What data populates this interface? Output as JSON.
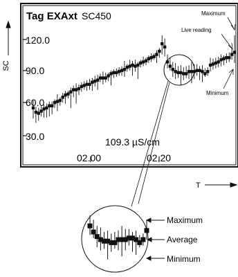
{
  "display": {
    "tag": "Tag EXAxt",
    "model": "SC450",
    "reading": "109.3 µS/cm",
    "y_axis_label": "SC",
    "x_axis_label": "T",
    "y_ticks": [
      "120.0",
      "90.0",
      "60.0",
      "30.0"
    ],
    "x_ticks": [
      "02.00",
      "02.20"
    ],
    "callouts": {
      "maximum": "Maximum",
      "live_reading": "Live reading",
      "minimum": "Minimum"
    }
  },
  "zoom": {
    "maximum": "Maximum",
    "average": "Average",
    "minimum": "Minimum"
  },
  "chart_data": {
    "type": "line",
    "title": "",
    "xlabel": "T",
    "ylabel": "SC",
    "ylim": [
      20,
      135
    ],
    "x_ticks": [
      "02.00",
      "02.20"
    ],
    "grid": false,
    "series": [
      {
        "average": [
          56,
          52,
          51,
          53,
          55,
          56,
          58,
          58,
          61,
          62,
          63,
          66,
          68,
          69,
          71,
          73,
          73,
          74,
          76,
          77,
          78,
          78,
          80,
          81,
          82,
          84,
          84,
          84,
          86,
          88,
          89,
          89,
          90,
          91,
          92,
          94,
          95,
          96,
          95,
          96,
          98,
          99,
          100,
          102,
          103,
          104,
          106,
          109,
          116,
          113,
          99,
          95,
          92,
          90,
          89,
          89,
          88,
          88,
          90,
          90,
          90,
          91,
          91,
          90,
          88,
          90,
          96,
          97,
          98,
          99,
          101,
          102,
          103,
          103,
          106,
          108
        ],
        "maximum": [
          63,
          57,
          56,
          58,
          59,
          60,
          62,
          62,
          64,
          69,
          66,
          70,
          72,
          72,
          75,
          77,
          79,
          78,
          80,
          81,
          82,
          83,
          84,
          86,
          87,
          88,
          90,
          89,
          89,
          91,
          92,
          93,
          94,
          95,
          100,
          97,
          101,
          100,
          101,
          99,
          101,
          104,
          103,
          105,
          107,
          107,
          110,
          112,
          124,
          121,
          106,
          103,
          99,
          98,
          95,
          96,
          94,
          95,
          96,
          99,
          97,
          97,
          95,
          96,
          93,
          94,
          103,
          102,
          103,
          104,
          106,
          105,
          107,
          108,
          111,
          124
        ],
        "minimum": [
          46,
          42,
          44,
          48,
          47,
          47,
          48,
          50,
          56,
          53,
          58,
          61,
          60,
          65,
          56,
          66,
          60,
          68,
          71,
          73,
          72,
          73,
          72,
          76,
          73,
          80,
          78,
          80,
          81,
          77,
          84,
          85,
          86,
          86,
          85,
          90,
          91,
          86,
          90,
          83,
          94,
          95,
          96,
          98,
          99,
          101,
          98,
          103,
          106,
          104,
          93,
          91,
          85,
          83,
          84,
          77,
          82,
          84,
          83,
          79,
          83,
          86,
          82,
          80,
          85,
          86,
          90,
          92,
          93,
          94,
          95,
          96,
          98,
          99,
          101,
          98
        ]
      }
    ]
  }
}
